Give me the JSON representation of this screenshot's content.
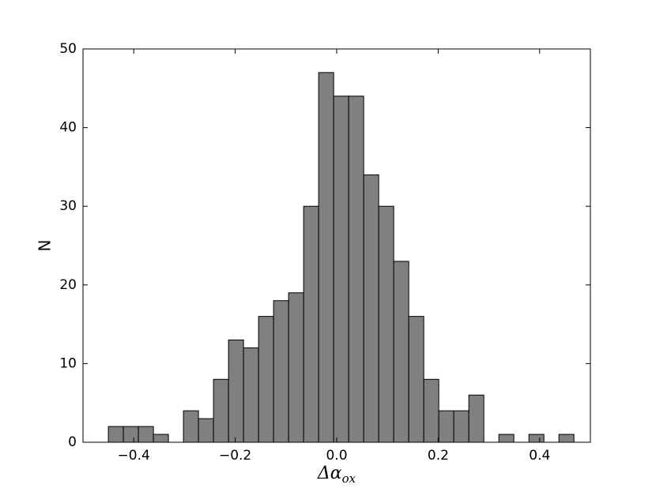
{
  "chart_data": {
    "type": "histogram",
    "xlabel": "Δα",
    "xlabel_sub": "ox",
    "ylabel": "N",
    "bins": [
      -0.45,
      -0.4204,
      -0.3908,
      -0.3612,
      -0.3316,
      -0.302,
      -0.2724,
      -0.2428,
      -0.2132,
      -0.1836,
      -0.154,
      -0.1244,
      -0.0948,
      -0.0652,
      -0.0356,
      -0.006,
      0.0236,
      0.0532,
      0.0828,
      0.1124,
      0.142,
      0.1716,
      0.2012,
      0.2308,
      0.2604,
      0.29,
      0.3196,
      0.3492,
      0.3788,
      0.4084,
      0.438,
      0.4676
    ],
    "counts": [
      2,
      2,
      2,
      1,
      0,
      4,
      3,
      8,
      13,
      12,
      16,
      18,
      19,
      30,
      47,
      44,
      44,
      34,
      30,
      23,
      16,
      8,
      4,
      4,
      6,
      0,
      1,
      0,
      1,
      0,
      1
    ],
    "color": "#808080",
    "xlim": [
      -0.5,
      0.5
    ],
    "xticks": [
      {
        "value": -0.4,
        "label": "−0.4"
      },
      {
        "value": -0.2,
        "label": "−0.2"
      },
      {
        "value": 0,
        "label": "0.0"
      },
      0.2,
      0.4
    ],
    "ylim": [
      0,
      50
    ],
    "yticks": [
      0,
      10,
      20,
      30,
      40,
      50
    ],
    "grid": false
  }
}
